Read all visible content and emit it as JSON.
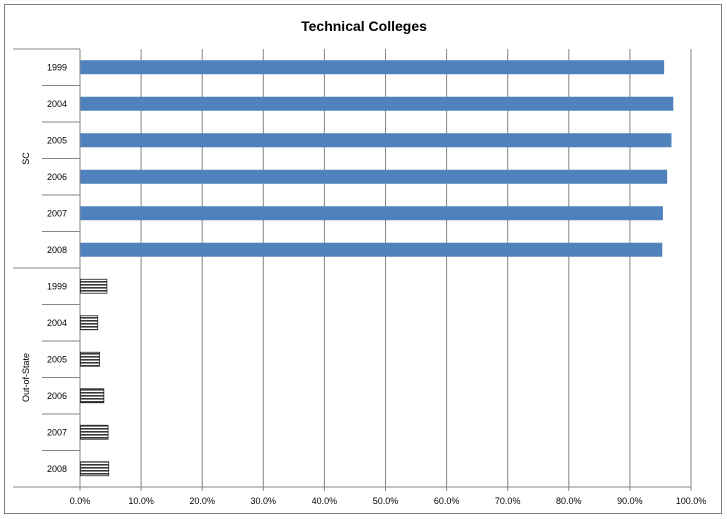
{
  "chart_data": {
    "type": "bar",
    "orientation": "horizontal",
    "title": "Technical Colleges",
    "xlim": [
      0,
      100
    ],
    "x_ticks": [
      "0.0%",
      "10.0%",
      "20.0%",
      "30.0%",
      "40.0%",
      "50.0%",
      "60.0%",
      "70.0%",
      "80.0%",
      "90.0%",
      "100.0%"
    ],
    "grid": "vertical major gridlines",
    "groups": [
      {
        "name": "SC",
        "color": "#4f81bd",
        "pattern": "solid",
        "categories": [
          "1999",
          "2004",
          "2005",
          "2006",
          "2007",
          "2008"
        ],
        "values": [
          95.6,
          97.1,
          96.8,
          96.1,
          95.4,
          95.3
        ]
      },
      {
        "name": "Out-of-State",
        "color": "#595959",
        "pattern": "horizontal-stripes",
        "categories": [
          "1999",
          "2004",
          "2005",
          "2006",
          "2007",
          "2008"
        ],
        "values": [
          4.4,
          2.9,
          3.2,
          3.9,
          4.6,
          4.7
        ]
      }
    ]
  }
}
